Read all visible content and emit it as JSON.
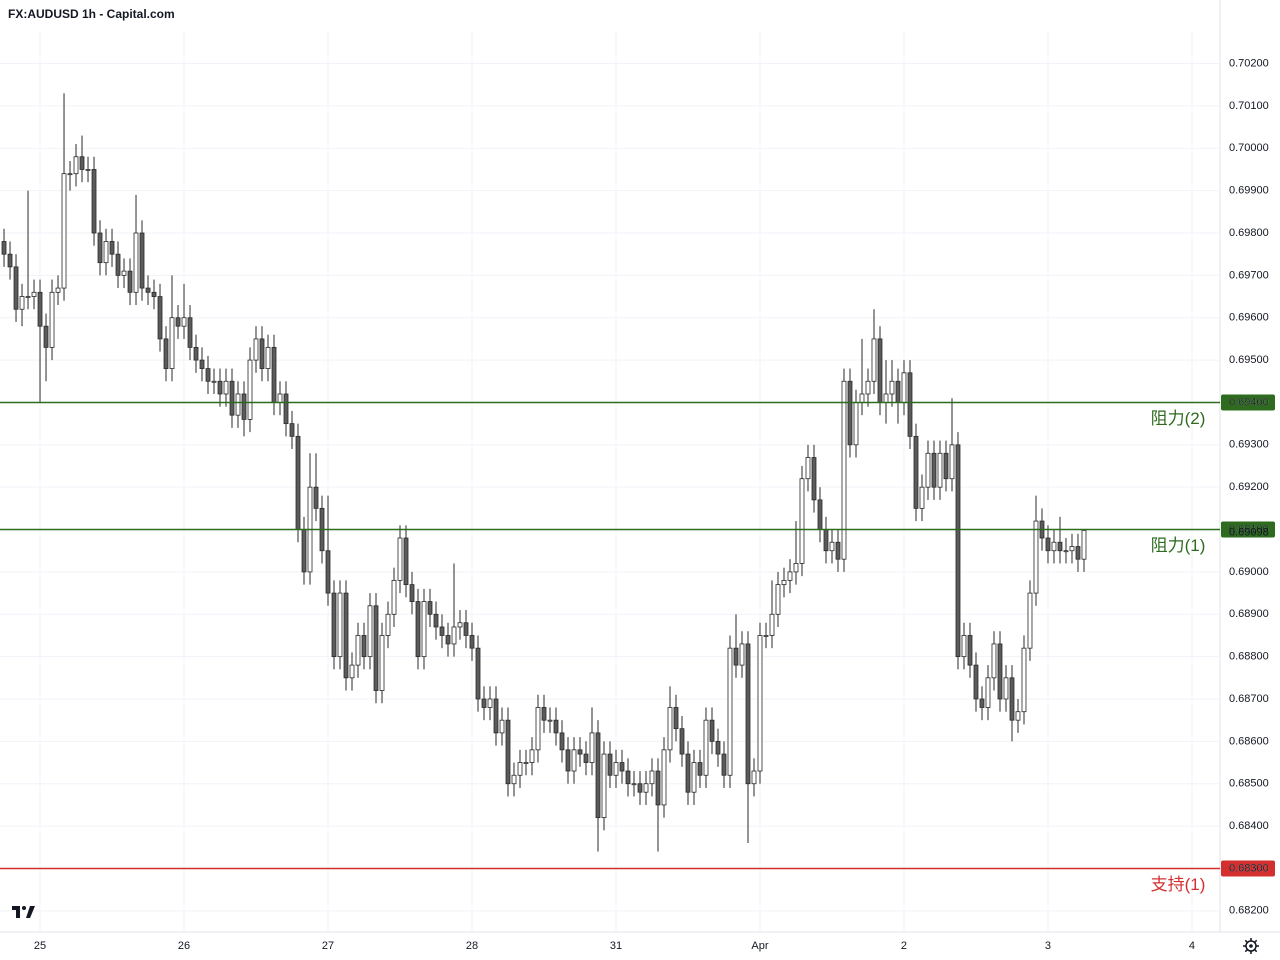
{
  "chart_data": {
    "type": "candlestick",
    "title": "FX:AUDUSD 1h - Capital.com",
    "up_color": "#ffffff",
    "down_color": "#5b5b5b",
    "border_color": "#2a2a2a",
    "grid": true,
    "xlim": [
      -0.67,
      202.67
    ],
    "xticks": [
      {
        "value": 6,
        "label": "25"
      },
      {
        "value": 30,
        "label": "26"
      },
      {
        "value": 54,
        "label": "27"
      },
      {
        "value": 78,
        "label": "28"
      },
      {
        "value": 102,
        "label": "31"
      },
      {
        "value": 126,
        "label": "Apr"
      },
      {
        "value": 150,
        "label": "2"
      },
      {
        "value": 174,
        "label": "3"
      },
      {
        "value": 198,
        "label": "4"
      }
    ],
    "ylim": [
      0.6815,
      0.7035
    ],
    "yticks": [
      {
        "value": 0.682,
        "label": "0.68200"
      },
      {
        "value": 0.683,
        "label": "0.68300"
      },
      {
        "value": 0.684,
        "label": "0.68400"
      },
      {
        "value": 0.685,
        "label": "0.68500"
      },
      {
        "value": 0.686,
        "label": "0.68600"
      },
      {
        "value": 0.687,
        "label": "0.68700"
      },
      {
        "value": 0.688,
        "label": "0.68800"
      },
      {
        "value": 0.689,
        "label": "0.68900"
      },
      {
        "value": 0.69,
        "label": "0.69000"
      },
      {
        "value": 0.691,
        "label": "0.69100"
      },
      {
        "value": 0.692,
        "label": "0.69200"
      },
      {
        "value": 0.693,
        "label": "0.69300"
      },
      {
        "value": 0.694,
        "label": "0.69400"
      },
      {
        "value": 0.695,
        "label": "0.69500"
      },
      {
        "value": 0.696,
        "label": "0.69600"
      },
      {
        "value": 0.697,
        "label": "0.69700"
      },
      {
        "value": 0.698,
        "label": "0.69800"
      },
      {
        "value": 0.699,
        "label": "0.69900"
      },
      {
        "value": 0.7,
        "label": "0.70000"
      },
      {
        "value": 0.701,
        "label": "0.70100"
      },
      {
        "value": 0.702,
        "label": "0.70200"
      }
    ],
    "levels": [
      {
        "name": "阻力(2)",
        "value": 0.694,
        "label": "0.69400",
        "color": "#2e6b1f"
      },
      {
        "name": "阻力(1)",
        "value": 0.691,
        "label": "0.69100",
        "color": "#2e6b1f"
      },
      {
        "name": "支持(1)",
        "value": 0.683,
        "label": "0.68300",
        "color": "#d32f2f"
      }
    ],
    "open": [
      0.6978,
      0.6975,
      0.6972,
      0.6962,
      0.6965,
      0.6965,
      0.6966,
      0.6958,
      0.6953,
      0.6966,
      0.6967,
      0.6994,
      0.6994,
      0.6998,
      0.6995,
      0.6995,
      0.698,
      0.6973,
      0.6978,
      0.6975,
      0.697,
      0.6971,
      0.6966,
      0.698,
      0.6967,
      0.6966,
      0.6965,
      0.6955,
      0.6948,
      0.696,
      0.6958,
      0.696,
      0.6953,
      0.695,
      0.6948,
      0.6945,
      0.6945,
      0.6942,
      0.6945,
      0.6937,
      0.6942,
      0.6936,
      0.695,
      0.6955,
      0.6948,
      0.6953,
      0.694,
      0.6942,
      0.6935,
      0.6932,
      0.691,
      0.69,
      0.692,
      0.6915,
      0.6905,
      0.6895,
      0.688,
      0.6895,
      0.6875,
      0.6878,
      0.6885,
      0.688,
      0.6892,
      0.6872,
      0.6885,
      0.689,
      0.6898,
      0.6908,
      0.6897,
      0.6893,
      0.688,
      0.6893,
      0.689,
      0.6887,
      0.6885,
      0.6883,
      0.6887,
      0.6888,
      0.6885,
      0.6882,
      0.687,
      0.6868,
      0.687,
      0.6862,
      0.6865,
      0.685,
      0.6852,
      0.6855,
      0.6855,
      0.6858,
      0.6868,
      0.6865,
      0.6865,
      0.6862,
      0.6858,
      0.6853,
      0.6858,
      0.6857,
      0.6855,
      0.6862,
      0.6842,
      0.6857,
      0.6852,
      0.6855,
      0.6853,
      0.685,
      0.685,
      0.6848,
      0.685,
      0.6853,
      0.6845,
      0.6858,
      0.6868,
      0.6863,
      0.6857,
      0.6848,
      0.6855,
      0.6852,
      0.6865,
      0.686,
      0.6857,
      0.6852,
      0.6882,
      0.6878,
      0.6883,
      0.685,
      0.6853,
      0.6885,
      0.6885,
      0.689,
      0.6897,
      0.6898,
      0.69,
      0.6902,
      0.6922,
      0.6927,
      0.6917,
      0.691,
      0.6905,
      0.6907,
      0.6903,
      0.6945,
      0.693,
      0.694,
      0.6942,
      0.6945,
      0.6955,
      0.694,
      0.6942,
      0.6945,
      0.694,
      0.6947,
      0.6932,
      0.6915,
      0.692,
      0.6928,
      0.692,
      0.6928,
      0.6922,
      0.693,
      0.688,
      0.6885,
      0.6878,
      0.687,
      0.6868,
      0.6875,
      0.6883,
      0.687,
      0.6875,
      0.6865,
      0.6867,
      0.6882,
      0.6895,
      0.6912,
      0.6908,
      0.6905,
      0.6907,
      0.6905,
      0.6905,
      0.6906,
      0.6903
    ],
    "high": [
      0.6981,
      0.6978,
      0.6975,
      0.6968,
      0.699,
      0.6969,
      0.6969,
      0.6961,
      0.6969,
      0.697,
      0.7013,
      0.6997,
      0.7001,
      0.7003,
      0.6998,
      0.6998,
      0.6983,
      0.6981,
      0.6981,
      0.6978,
      0.6974,
      0.6974,
      0.6989,
      0.6983,
      0.697,
      0.6969,
      0.6968,
      0.6958,
      0.697,
      0.6963,
      0.6968,
      0.6963,
      0.6956,
      0.6953,
      0.6951,
      0.6948,
      0.6948,
      0.6948,
      0.6948,
      0.6945,
      0.6945,
      0.6953,
      0.6958,
      0.6958,
      0.6956,
      0.6956,
      0.6945,
      0.6945,
      0.6938,
      0.6935,
      0.6913,
      0.6928,
      0.6928,
      0.6918,
      0.6918,
      0.6898,
      0.6898,
      0.6898,
      0.6881,
      0.6888,
      0.6888,
      0.6895,
      0.6895,
      0.6888,
      0.6893,
      0.6901,
      0.6911,
      0.6911,
      0.69,
      0.6896,
      0.6896,
      0.6896,
      0.6893,
      0.689,
      0.6888,
      0.6902,
      0.6891,
      0.6891,
      0.6888,
      0.6885,
      0.6873,
      0.6873,
      0.6873,
      0.6868,
      0.6868,
      0.6855,
      0.6858,
      0.6858,
      0.6861,
      0.6871,
      0.6871,
      0.6868,
      0.6868,
      0.6865,
      0.6861,
      0.6861,
      0.6861,
      0.686,
      0.6868,
      0.6865,
      0.686,
      0.686,
      0.6858,
      0.6858,
      0.6856,
      0.6853,
      0.6853,
      0.6853,
      0.6856,
      0.6856,
      0.6861,
      0.6873,
      0.6871,
      0.6866,
      0.686,
      0.6858,
      0.6858,
      0.6868,
      0.6868,
      0.6863,
      0.686,
      0.6885,
      0.689,
      0.6886,
      0.6886,
      0.6856,
      0.6888,
      0.6888,
      0.6898,
      0.69,
      0.6901,
      0.6903,
      0.6912,
      0.6925,
      0.693,
      0.693,
      0.692,
      0.6913,
      0.691,
      0.691,
      0.6948,
      0.6948,
      0.6943,
      0.6955,
      0.6948,
      0.6962,
      0.6958,
      0.695,
      0.695,
      0.6948,
      0.695,
      0.695,
      0.6935,
      0.6923,
      0.6931,
      0.6931,
      0.6931,
      0.6931,
      0.6941,
      0.6933,
      0.6888,
      0.6888,
      0.6881,
      0.6873,
      0.6878,
      0.6886,
      0.6886,
      0.6878,
      0.6878,
      0.687,
      0.6885,
      0.6898,
      0.6918,
      0.6915,
      0.6911,
      0.691,
      0.6913,
      0.6908,
      0.6909,
      0.6909,
      0.691
    ],
    "low": [
      0.6972,
      0.6969,
      0.6959,
      0.6958,
      0.6962,
      0.6962,
      0.694,
      0.6945,
      0.695,
      0.6963,
      0.6964,
      0.699,
      0.6991,
      0.6992,
      0.6992,
      0.6977,
      0.697,
      0.697,
      0.6972,
      0.6967,
      0.6967,
      0.6963,
      0.6963,
      0.6964,
      0.6963,
      0.6962,
      0.6952,
      0.6945,
      0.6945,
      0.6955,
      0.6955,
      0.695,
      0.6947,
      0.6945,
      0.6942,
      0.6942,
      0.6939,
      0.6939,
      0.6934,
      0.6934,
      0.6932,
      0.6933,
      0.6947,
      0.6945,
      0.6945,
      0.6937,
      0.6937,
      0.6932,
      0.6929,
      0.6907,
      0.6897,
      0.6897,
      0.6912,
      0.6902,
      0.6892,
      0.6877,
      0.6877,
      0.6872,
      0.6872,
      0.6875,
      0.6877,
      0.6877,
      0.6869,
      0.6869,
      0.6882,
      0.6887,
      0.6895,
      0.6894,
      0.689,
      0.6877,
      0.6877,
      0.6887,
      0.6884,
      0.6882,
      0.688,
      0.688,
      0.6884,
      0.6882,
      0.6879,
      0.6867,
      0.6865,
      0.6865,
      0.6859,
      0.6859,
      0.6847,
      0.6847,
      0.6849,
      0.6852,
      0.6852,
      0.6855,
      0.6862,
      0.6862,
      0.6859,
      0.6855,
      0.685,
      0.685,
      0.6854,
      0.6852,
      0.6852,
      0.6834,
      0.6839,
      0.6849,
      0.6849,
      0.685,
      0.6847,
      0.6847,
      0.6845,
      0.6845,
      0.6847,
      0.6834,
      0.6842,
      0.6855,
      0.686,
      0.6854,
      0.6845,
      0.6845,
      0.6849,
      0.6849,
      0.6857,
      0.6854,
      0.6849,
      0.6849,
      0.6875,
      0.6875,
      0.6836,
      0.6847,
      0.685,
      0.6882,
      0.6882,
      0.6887,
      0.6894,
      0.6895,
      0.6897,
      0.6899,
      0.6919,
      0.6914,
      0.6907,
      0.6902,
      0.6902,
      0.69,
      0.69,
      0.6927,
      0.6927,
      0.6937,
      0.6939,
      0.6942,
      0.6937,
      0.6935,
      0.6939,
      0.6935,
      0.6937,
      0.6929,
      0.6912,
      0.6912,
      0.6917,
      0.6917,
      0.6917,
      0.6919,
      0.6919,
      0.6877,
      0.6877,
      0.6875,
      0.6867,
      0.6865,
      0.6865,
      0.6872,
      0.6867,
      0.6867,
      0.686,
      0.6862,
      0.6864,
      0.6879,
      0.6892,
      0.6905,
      0.6902,
      0.6902,
      0.6902,
      0.6902,
      0.6902,
      0.69,
      0.69
    ],
    "close": [
      0.6975,
      0.6972,
      0.6962,
      0.6965,
      0.6965,
      0.6966,
      0.6958,
      0.6953,
      0.6966,
      0.6967,
      0.6994,
      0.6994,
      0.6998,
      0.6995,
      0.6995,
      0.698,
      0.6973,
      0.6978,
      0.6975,
      0.697,
      0.6971,
      0.6966,
      0.698,
      0.6967,
      0.6966,
      0.6965,
      0.6955,
      0.6948,
      0.696,
      0.6958,
      0.696,
      0.6953,
      0.695,
      0.6948,
      0.6945,
      0.6945,
      0.6942,
      0.6945,
      0.6937,
      0.6942,
      0.6936,
      0.695,
      0.6955,
      0.6948,
      0.6953,
      0.694,
      0.6942,
      0.6935,
      0.6932,
      0.691,
      0.69,
      0.692,
      0.6915,
      0.6905,
      0.6895,
      0.688,
      0.6895,
      0.6875,
      0.6878,
      0.6885,
      0.688,
      0.6892,
      0.6872,
      0.6885,
      0.689,
      0.6898,
      0.6908,
      0.6897,
      0.6893,
      0.688,
      0.6893,
      0.689,
      0.6887,
      0.6885,
      0.6883,
      0.6887,
      0.6888,
      0.6885,
      0.6882,
      0.687,
      0.6868,
      0.687,
      0.6862,
      0.6865,
      0.685,
      0.6852,
      0.6855,
      0.6855,
      0.6858,
      0.6868,
      0.6865,
      0.6865,
      0.6862,
      0.6858,
      0.6853,
      0.6858,
      0.6857,
      0.6855,
      0.6862,
      0.6842,
      0.6857,
      0.6852,
      0.6855,
      0.6853,
      0.685,
      0.685,
      0.6848,
      0.685,
      0.6853,
      0.6845,
      0.6858,
      0.6868,
      0.6863,
      0.6857,
      0.6848,
      0.6855,
      0.6852,
      0.6865,
      0.686,
      0.6857,
      0.6852,
      0.6882,
      0.6878,
      0.6883,
      0.685,
      0.6853,
      0.6885,
      0.6885,
      0.689,
      0.6897,
      0.6898,
      0.69,
      0.6902,
      0.6922,
      0.6927,
      0.6917,
      0.691,
      0.6905,
      0.6907,
      0.6903,
      0.6945,
      0.693,
      0.694,
      0.6942,
      0.6945,
      0.6955,
      0.694,
      0.6942,
      0.6945,
      0.694,
      0.6947,
      0.6932,
      0.6915,
      0.692,
      0.6928,
      0.692,
      0.6928,
      0.6922,
      0.693,
      0.688,
      0.6885,
      0.6878,
      0.687,
      0.6868,
      0.6875,
      0.6883,
      0.687,
      0.6875,
      0.6865,
      0.6867,
      0.6882,
      0.6895,
      0.6912,
      0.6908,
      0.6905,
      0.6907,
      0.6905,
      0.6905,
      0.6906,
      0.6903,
      0.69098
    ]
  }
}
